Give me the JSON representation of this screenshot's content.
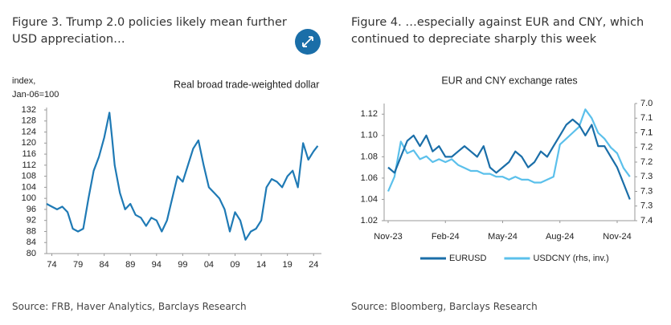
{
  "chart_data": [
    {
      "type": "line",
      "figure_title": "Figure 3. Trump 2.0 policies likely mean further USD appreciation…",
      "title": "Real broad trade-weighted dollar",
      "y_label": [
        "index,",
        "Jan-06=100"
      ],
      "source": "Source: FRB, Haver Analytics, Barclays Research",
      "color": "#1f7ab5",
      "x": [
        1973,
        1974,
        1975,
        1976,
        1977,
        1978,
        1979,
        1980,
        1981,
        1982,
        1983,
        1984,
        1985,
        1985.5,
        1986,
        1987,
        1988,
        1989,
        1990,
        1991,
        1992,
        1993,
        1994,
        1995,
        1996,
        1997,
        1998,
        1999,
        2000,
        2001,
        2002,
        2003,
        2004,
        2005,
        2006,
        2007,
        2008,
        2009,
        2010,
        2011,
        2012,
        2013,
        2014,
        2015,
        2016,
        2017,
        2018,
        2019,
        2020,
        2021,
        2022,
        2023,
        2024,
        2024.8
      ],
      "values": [
        98,
        97,
        96,
        97,
        95,
        89,
        88,
        89,
        100,
        110,
        115,
        122,
        131,
        122,
        112,
        102,
        96,
        98,
        94,
        93,
        90,
        93,
        92,
        88,
        92,
        100,
        108,
        106,
        112,
        118,
        121,
        112,
        104,
        102,
        100,
        96,
        88,
        95,
        92,
        85,
        88,
        89,
        92,
        104,
        107,
        106,
        104,
        108,
        110,
        104,
        120,
        114,
        117,
        119
      ],
      "xlim": [
        1973,
        2025.5
      ],
      "xticks": [
        {
          "value": 1974,
          "label": "74"
        },
        {
          "value": 1979,
          "label": "79"
        },
        {
          "value": 1984,
          "label": "84"
        },
        {
          "value": 1989,
          "label": "89"
        },
        {
          "value": 1994,
          "label": "94"
        },
        {
          "value": 1999,
          "label": "99"
        },
        {
          "value": 2004,
          "label": "04"
        },
        {
          "value": 2009,
          "label": "09"
        },
        {
          "value": 2014,
          "label": "14"
        },
        {
          "value": 2019,
          "label": "19"
        },
        {
          "value": 2024,
          "label": "24"
        }
      ],
      "ylim": [
        80,
        132
      ],
      "yticks": [
        80,
        84,
        88,
        92,
        96,
        100,
        104,
        108,
        112,
        116,
        120,
        124,
        128,
        132
      ],
      "grid": false
    },
    {
      "type": "line",
      "figure_title": "Figure 4. …especially against EUR and CNY, which continued to depreciate sharply this week",
      "title": "EUR and CNY exchange rates",
      "source": "Source: Bloomberg, Barclays Research",
      "categories": [
        "Nov-23",
        null,
        null,
        null,
        null,
        null,
        null,
        null,
        null,
        "Feb-24",
        null,
        null,
        null,
        null,
        null,
        null,
        null,
        null,
        "May-24",
        null,
        null,
        null,
        null,
        null,
        null,
        null,
        null,
        "Aug-24",
        null,
        null,
        null,
        null,
        null,
        null,
        null,
        null,
        "Nov-24",
        null,
        null
      ],
      "series": [
        {
          "name": "EURUSD",
          "color": "#1a6ea8",
          "values": [
            1.07,
            1.065,
            1.08,
            1.095,
            1.1,
            1.09,
            1.1,
            1.085,
            1.09,
            1.08,
            1.08,
            1.085,
            1.09,
            1.085,
            1.08,
            1.09,
            1.07,
            1.065,
            1.07,
            1.075,
            1.085,
            1.08,
            1.07,
            1.075,
            1.085,
            1.08,
            1.09,
            1.1,
            1.11,
            1.115,
            1.11,
            1.1,
            1.11,
            1.09,
            1.09,
            1.08,
            1.07,
            1.055,
            1.04
          ]
        },
        {
          "name": "USDCNY (rhs, inv.)",
          "color": "#5bc0eb",
          "axis": "y2",
          "values": [
            7.3,
            7.25,
            7.13,
            7.17,
            7.16,
            7.19,
            7.18,
            7.2,
            7.19,
            7.2,
            7.19,
            7.21,
            7.22,
            7.23,
            7.23,
            7.24,
            7.24,
            7.25,
            7.25,
            7.26,
            7.25,
            7.26,
            7.26,
            7.27,
            7.27,
            7.26,
            7.25,
            7.14,
            7.12,
            7.1,
            7.08,
            7.02,
            7.05,
            7.1,
            7.12,
            7.15,
            7.17,
            7.22,
            7.25
          ]
        }
      ],
      "ylim": [
        1.02,
        1.13
      ],
      "yticks": [
        1.02,
        1.04,
        1.06,
        1.08,
        {
          "value": 1.1,
          "label": "1.10"
        },
        1.12
      ],
      "y2lim": [
        7.0,
        7.4
      ],
      "y2_inverted": true,
      "y2ticks": [
        {
          "value": 7.0,
          "label": "7.0"
        },
        7.1,
        {
          "value": 7.05,
          "label": "7.1"
        },
        {
          "value": 7.1,
          "label": "7.1"
        },
        {
          "value": 7.15,
          "label": "7.2"
        },
        {
          "value": 7.2,
          "label": "7.2"
        },
        {
          "value": 7.25,
          "label": "7.3"
        },
        {
          "value": 7.3,
          "label": "7.3"
        },
        {
          "value": 7.35,
          "label": "7.3"
        },
        7.4
      ],
      "legend": "bottom",
      "grid": false
    }
  ]
}
